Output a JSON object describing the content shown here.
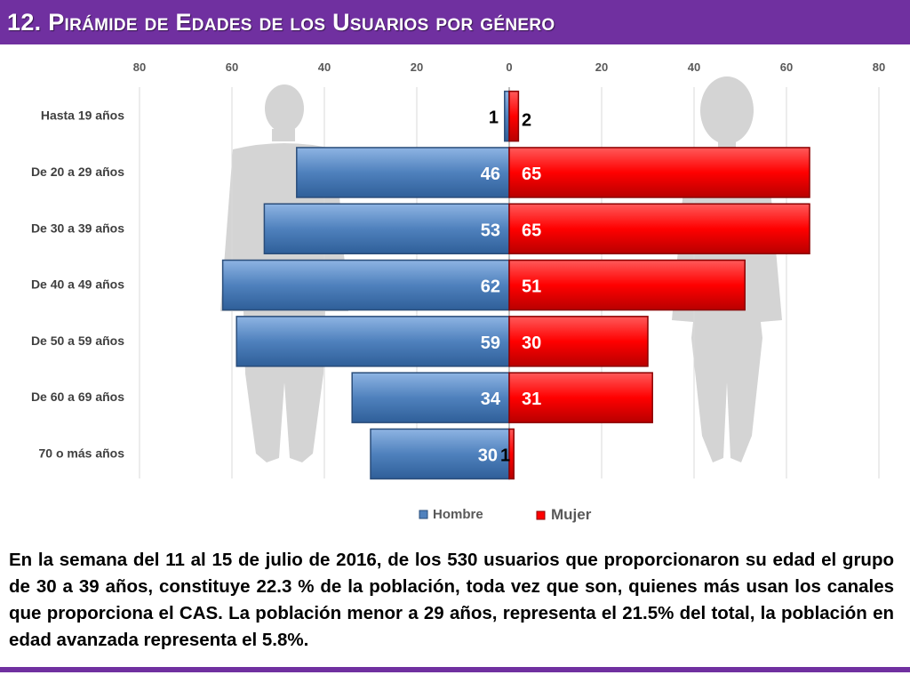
{
  "page": {
    "title": "12. Pirámide de Edades de los Usuarios por género",
    "description": "En la semana del 11 al 15 de julio de 2016, de los 530 usuarios  que proporcionaron su edad el grupo de 30 a 39 años,  constituye 22.3 % de la población, toda vez que son, quienes más usan los canales que proporciona el CAS. La población menor a 29 años, representa el 21.5% del total, la población en edad avanzada representa el 5.8%."
  },
  "colors": {
    "header": "#7030a0",
    "hombre": "#4f81bd",
    "mujer": "#ff0000"
  },
  "chart_data": {
    "type": "bar",
    "subtype": "population-pyramid",
    "title": "",
    "categories": [
      "Hasta 19 años",
      "De 20 a 29 años",
      "De 30 a 39 años",
      "De 40 a 49 años",
      "De 50 a 59 años",
      "De 60 a 69 años",
      "70 o más años"
    ],
    "series": [
      {
        "name": "Hombre",
        "values": [
          1,
          46,
          53,
          62,
          59,
          34,
          30
        ],
        "side": "left"
      },
      {
        "name": "Mujer",
        "values": [
          2,
          65,
          65,
          51,
          30,
          31,
          1
        ],
        "side": "right"
      }
    ],
    "x_ticks": [
      "80",
      "60",
      "40",
      "20",
      "0",
      "20",
      "40",
      "60",
      "80"
    ],
    "xlim": [
      -80,
      80
    ],
    "grid": true,
    "legend": "bottom"
  }
}
